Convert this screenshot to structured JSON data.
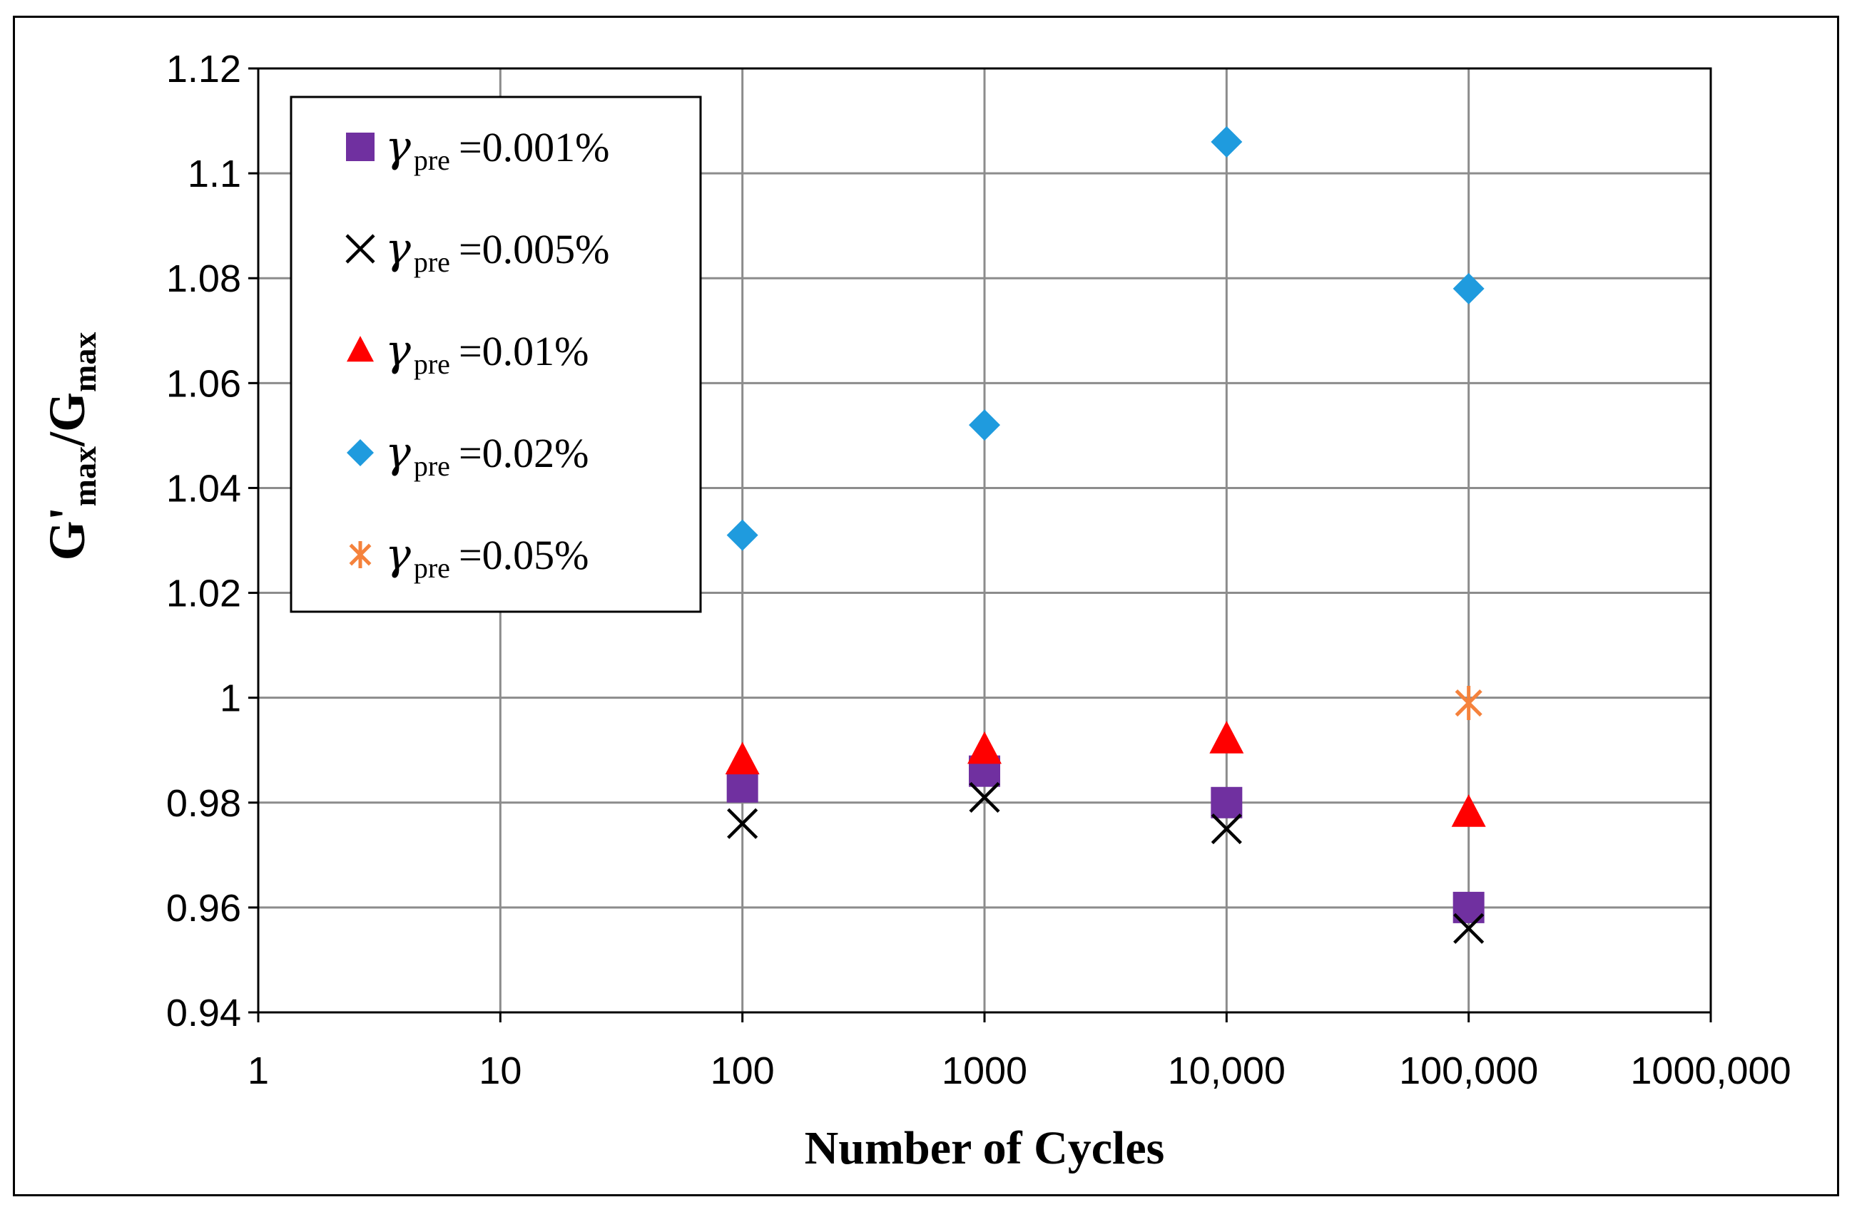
{
  "chart_data": {
    "type": "scatter",
    "x_scale": "log",
    "xlabel": "Number of Cycles",
    "ylabel_parts": {
      "numerator": "G'",
      "numerator_sub": "max",
      "separator": "/",
      "denominator": "G",
      "denominator_sub": "max"
    },
    "xlim": [
      1,
      1000000
    ],
    "ylim": [
      0.94,
      1.12
    ],
    "y_step": 0.02,
    "grid": true,
    "legend_position": "top-left",
    "x_ticks": [
      {
        "value": 1,
        "label": "1"
      },
      {
        "value": 10,
        "label": "10"
      },
      {
        "value": 100,
        "label": "100"
      },
      {
        "value": 1000,
        "label": "1000"
      },
      {
        "value": 10000,
        "label": "10,000"
      },
      {
        "value": 100000,
        "label": "100,000"
      },
      {
        "value": 1000000,
        "label": "1000,000"
      }
    ],
    "y_ticks": [
      {
        "value": 0.94,
        "label": "0.94"
      },
      {
        "value": 0.96,
        "label": "0.96"
      },
      {
        "value": 0.98,
        "label": "0.98"
      },
      {
        "value": 1.0,
        "label": "1"
      },
      {
        "value": 1.02,
        "label": "1.02"
      },
      {
        "value": 1.04,
        "label": "1.04"
      },
      {
        "value": 1.06,
        "label": "1.06"
      },
      {
        "value": 1.08,
        "label": "1.08"
      },
      {
        "value": 1.1,
        "label": "1.1"
      },
      {
        "value": 1.12,
        "label": "1.12"
      }
    ],
    "series": [
      {
        "name": "γpre =0.001%",
        "symbol": "γ",
        "sub": "pre",
        "value_text": "=0.001%",
        "marker": "square",
        "color": "#7030A0",
        "points": [
          [
            100,
            0.983
          ],
          [
            1000,
            0.986
          ],
          [
            10000,
            0.98
          ],
          [
            100000,
            0.96
          ]
        ]
      },
      {
        "name": "γpre =0.005%",
        "symbol": "γ",
        "sub": "pre",
        "value_text": "=0.005%",
        "marker": "x",
        "color": "#000000",
        "points": [
          [
            100,
            0.976
          ],
          [
            1000,
            0.981
          ],
          [
            10000,
            0.975
          ],
          [
            100000,
            0.956
          ]
        ]
      },
      {
        "name": "γpre =0.01%",
        "symbol": "γ",
        "sub": "pre",
        "value_text": "=0.01%",
        "marker": "triangle",
        "color": "#FF0000",
        "points": [
          [
            100,
            0.988
          ],
          [
            1000,
            0.99
          ],
          [
            10000,
            0.992
          ],
          [
            100000,
            0.978
          ]
        ]
      },
      {
        "name": "γpre =0.02%",
        "symbol": "γ",
        "sub": "pre",
        "value_text": "=0.02%",
        "marker": "diamond",
        "color": "#1F9BDE",
        "points": [
          [
            100,
            1.031
          ],
          [
            1000,
            1.052
          ],
          [
            10000,
            1.106
          ],
          [
            100000,
            1.078
          ]
        ]
      },
      {
        "name": "γpre =0.05%",
        "symbol": "γ",
        "sub": "pre",
        "value_text": "=0.05%",
        "marker": "asterisk",
        "color": "#F5823C",
        "points": [
          [
            100000,
            0.999
          ]
        ]
      }
    ]
  }
}
